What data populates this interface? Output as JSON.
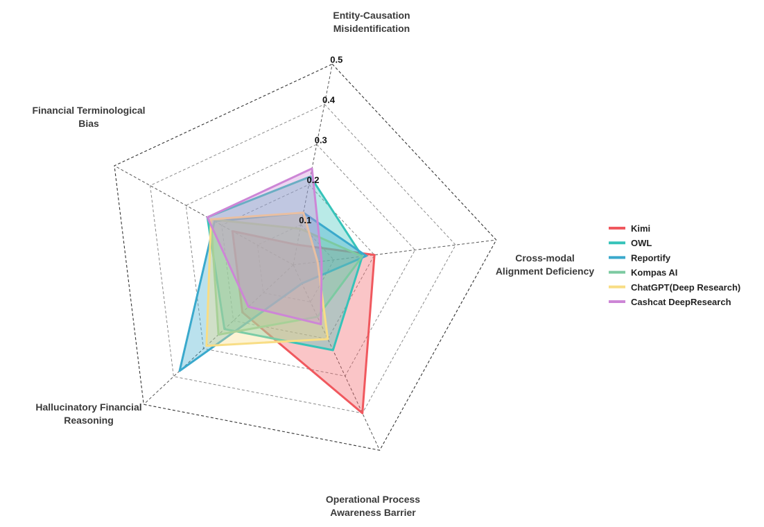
{
  "chart_data": {
    "type": "radar",
    "axes": [
      "Entity-Causation\nMisidentification",
      "Cross-modal\nAlignment Deficiency",
      "Operational Process\nAwareness Barrier",
      "Hallucinatory Financial\nReasoning",
      "Financial Terminological\nBias"
    ],
    "rlim": [
      0,
      0.5
    ],
    "rticks": [
      "0.1",
      "0.2",
      "0.3",
      "0.4",
      "0.5"
    ],
    "grid": true,
    "legend_position": "right",
    "series": [
      {
        "name": "Kimi",
        "color": "#f0585e",
        "values": [
          0.05,
          0.2,
          0.4,
          0.17,
          0.17
        ]
      },
      {
        "name": "OWL",
        "color": "#36c3b9",
        "values": [
          0.22,
          0.17,
          0.23,
          0.23,
          0.24
        ]
      },
      {
        "name": "Reportify",
        "color": "#3aa9cc",
        "values": [
          0.13,
          0.18,
          0.05,
          0.38,
          0.22
        ]
      },
      {
        "name": "Kompas AI",
        "color": "#7ccaa1",
        "values": [
          0.09,
          0.17,
          0.14,
          0.25,
          0.23
        ]
      },
      {
        "name": "ChatGPT(Deep Research)",
        "color": "#f8dd85",
        "values": [
          0.13,
          0.06,
          0.2,
          0.29,
          0.23
        ]
      },
      {
        "name": "Cashcat DeepResearch",
        "color": "#cd86d6",
        "values": [
          0.24,
          0.07,
          0.16,
          0.15,
          0.24
        ]
      }
    ]
  }
}
